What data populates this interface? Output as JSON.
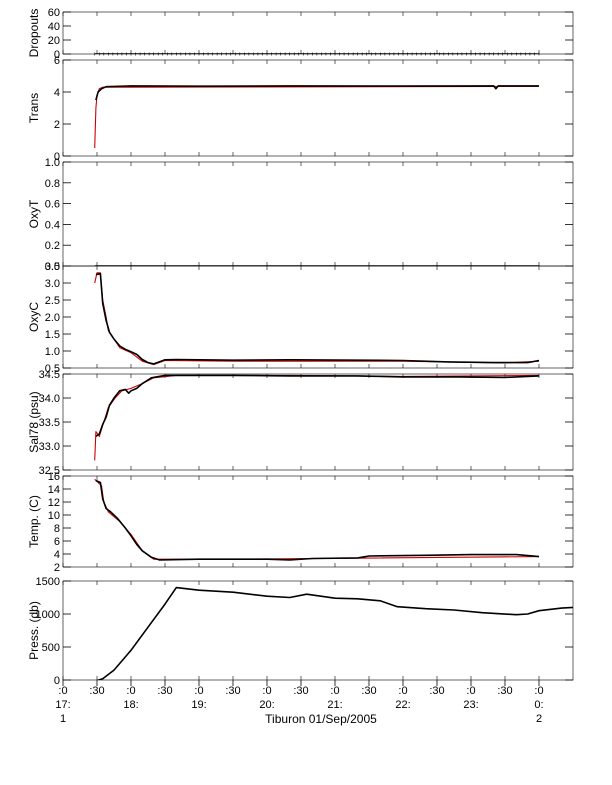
{
  "chart_data": {
    "type": "line",
    "title": "Tiburon 01/Sep/2005",
    "x_range": [
      "17:00",
      "00:30"
    ],
    "x_ticks": [
      {
        "top": ":0",
        "hour": "17:",
        "day": "1",
        "t": 0
      },
      {
        "top": ":30",
        "hour": "",
        "day": "",
        "t": 30
      },
      {
        "top": ":0",
        "hour": "18:",
        "day": "",
        "t": 60
      },
      {
        "top": ":30",
        "hour": "",
        "day": "",
        "t": 90
      },
      {
        "top": ":0",
        "hour": "19:",
        "day": "",
        "t": 120
      },
      {
        "top": ":30",
        "hour": "",
        "day": "",
        "t": 150
      },
      {
        "top": ":0",
        "hour": "20:",
        "day": "",
        "t": 180
      },
      {
        "top": ":30",
        "hour": "",
        "day": "",
        "t": 210
      },
      {
        "top": ":0",
        "hour": "21:",
        "day": "",
        "t": 240
      },
      {
        "top": ":30",
        "hour": "",
        "day": "",
        "t": 270
      },
      {
        "top": ":0",
        "hour": "22:",
        "day": "",
        "t": 300
      },
      {
        "top": ":30",
        "hour": "",
        "day": "",
        "t": 330
      },
      {
        "top": ":0",
        "hour": "23:",
        "day": "",
        "t": 360
      },
      {
        "top": ":30",
        "hour": "",
        "day": "",
        "t": 390
      },
      {
        "top": ":0",
        "hour": "0:",
        "day": "2",
        "t": 420
      }
    ],
    "x_max": 450,
    "panels": [
      {
        "ylabel": "Dropouts",
        "ylim": [
          0,
          60
        ],
        "yticks": [
          0,
          20,
          40,
          60
        ],
        "ytick_labels": [
          "0",
          "20",
          "40",
          "60"
        ],
        "series": [
          {
            "color": "#000000",
            "points": [
              [
                28,
                0
              ],
              [
                420,
                0
              ]
            ]
          }
        ]
      },
      {
        "ylabel": "Trans",
        "ylim": [
          0,
          6
        ],
        "yticks": [
          0,
          2,
          4,
          6
        ],
        "ytick_labels": [
          "0",
          "2",
          "4",
          "6"
        ],
        "series": [
          {
            "color": "#cc0000",
            "points": [
              [
                28,
                0.5
              ],
              [
                29,
                3.0
              ],
              [
                30,
                3.8
              ],
              [
                32,
                4.2
              ],
              [
                35,
                4.3
              ],
              [
                420,
                4.35
              ]
            ]
          },
          {
            "color": "#000000",
            "points": [
              [
                29,
                3.5
              ],
              [
                31,
                4.0
              ],
              [
                34,
                4.2
              ],
              [
                38,
                4.33
              ],
              [
                60,
                4.38
              ],
              [
                120,
                4.36
              ],
              [
                200,
                4.38
              ],
              [
                300,
                4.37
              ],
              [
                380,
                4.38
              ],
              [
                382,
                4.2
              ],
              [
                384,
                4.38
              ],
              [
                420,
                4.38
              ]
            ]
          }
        ]
      },
      {
        "ylabel": "OxyT",
        "ylim": [
          0,
          1
        ],
        "yticks": [
          0,
          0.2,
          0.4,
          0.6,
          0.8,
          1.0
        ],
        "ytick_labels": [
          "0.0",
          "0.2",
          "0.4",
          "0.6",
          "0.8",
          "1.0"
        ],
        "series": [
          {
            "color": "#000000",
            "points": [
              [
                28,
                0
              ],
              [
                420,
                0
              ]
            ]
          }
        ]
      },
      {
        "ylabel": "OxyC",
        "ylim": [
          0.5,
          3.5
        ],
        "yticks": [
          0.5,
          1.0,
          1.5,
          2.0,
          2.5,
          3.0,
          3.5
        ],
        "ytick_labels": [
          "0.5",
          "1.0",
          "1.5",
          "2.0",
          "2.5",
          "3.0",
          "3.5"
        ],
        "series": [
          {
            "color": "#cc0000",
            "points": [
              [
                28,
                3.0
              ],
              [
                30,
                3.3
              ],
              [
                33,
                3.3
              ],
              [
                35,
                2.5
              ],
              [
                38,
                2.0
              ],
              [
                40,
                1.6
              ],
              [
                44,
                1.4
              ],
              [
                50,
                1.1
              ],
              [
                60,
                0.95
              ],
              [
                70,
                0.7
              ],
              [
                80,
                0.6
              ],
              [
                90,
                0.72
              ],
              [
                150,
                0.7
              ],
              [
                300,
                0.7
              ],
              [
                390,
                0.65
              ],
              [
                420,
                0.7
              ]
            ]
          },
          {
            "color": "#000000",
            "points": [
              [
                29,
                3.25
              ],
              [
                33,
                3.27
              ],
              [
                35,
                2.4
              ],
              [
                38,
                1.9
              ],
              [
                41,
                1.55
              ],
              [
                45,
                1.35
              ],
              [
                50,
                1.15
              ],
              [
                55,
                1.05
              ],
              [
                60,
                0.98
              ],
              [
                65,
                0.9
              ],
              [
                70,
                0.75
              ],
              [
                75,
                0.66
              ],
              [
                80,
                0.62
              ],
              [
                85,
                0.68
              ],
              [
                90,
                0.74
              ],
              [
                100,
                0.75
              ],
              [
                150,
                0.73
              ],
              [
                200,
                0.74
              ],
              [
                260,
                0.73
              ],
              [
                300,
                0.72
              ],
              [
                340,
                0.68
              ],
              [
                380,
                0.66
              ],
              [
                410,
                0.66
              ],
              [
                420,
                0.72
              ]
            ]
          }
        ]
      },
      {
        "ylabel": "Sal78 (psu)",
        "ylim": [
          32.5,
          34.5
        ],
        "yticks": [
          32.5,
          33.0,
          33.5,
          34.0,
          34.5
        ],
        "ytick_labels": [
          "32.5",
          "33.0",
          "33.5",
          "34.0",
          "34.5"
        ],
        "series": [
          {
            "color": "#cc0000",
            "points": [
              [
                28,
                32.7
              ],
              [
                29,
                33.3
              ],
              [
                32,
                33.2
              ],
              [
                36,
                33.5
              ],
              [
                40,
                33.8
              ],
              [
                46,
                34.0
              ],
              [
                52,
                34.15
              ],
              [
                60,
                34.2
              ],
              [
                70,
                34.3
              ],
              [
                80,
                34.42
              ],
              [
                100,
                34.47
              ],
              [
                200,
                34.47
              ],
              [
                300,
                34.45
              ],
              [
                420,
                34.47
              ]
            ]
          },
          {
            "color": "#000000",
            "points": [
              [
                29,
                33.2
              ],
              [
                32,
                33.25
              ],
              [
                35,
                33.45
              ],
              [
                38,
                33.6
              ],
              [
                41,
                33.85
              ],
              [
                45,
                34.0
              ],
              [
                50,
                34.15
              ],
              [
                55,
                34.18
              ],
              [
                58,
                34.1
              ],
              [
                60,
                34.15
              ],
              [
                65,
                34.2
              ],
              [
                70,
                34.3
              ],
              [
                78,
                34.42
              ],
              [
                90,
                34.47
              ],
              [
                150,
                34.47
              ],
              [
                200,
                34.46
              ],
              [
                260,
                34.46
              ],
              [
                300,
                34.44
              ],
              [
                350,
                34.44
              ],
              [
                390,
                34.43
              ],
              [
                420,
                34.46
              ]
            ]
          }
        ]
      },
      {
        "ylabel": "Temp. (C)",
        "ylim": [
          2,
          16
        ],
        "yticks": [
          2,
          4,
          6,
          8,
          10,
          12,
          14,
          16
        ],
        "ytick_labels": [
          "2",
          "4",
          "6",
          "8",
          "10",
          "12",
          "14",
          "16"
        ],
        "series": [
          {
            "color": "#cc0000",
            "points": [
              [
                28,
                15.5
              ],
              [
                31,
                15.0
              ],
              [
                34,
                14.5
              ],
              [
                36,
                12.0
              ],
              [
                40,
                10.5
              ],
              [
                50,
                9.0
              ],
              [
                60,
                7.0
              ],
              [
                70,
                4.5
              ],
              [
                80,
                3.2
              ],
              [
                150,
                3.2
              ],
              [
                420,
                3.6
              ]
            ]
          },
          {
            "color": "#000000",
            "points": [
              [
                29,
                15.3
              ],
              [
                33,
                15.0
              ],
              [
                35,
                12.5
              ],
              [
                38,
                11.0
              ],
              [
                42,
                10.5
              ],
              [
                48,
                9.5
              ],
              [
                55,
                8.0
              ],
              [
                60,
                6.8
              ],
              [
                65,
                5.5
              ],
              [
                70,
                4.5
              ],
              [
                78,
                3.5
              ],
              [
                85,
                3.1
              ],
              [
                120,
                3.2
              ],
              [
                180,
                3.2
              ],
              [
                200,
                3.1
              ],
              [
                220,
                3.3
              ],
              [
                260,
                3.4
              ],
              [
                270,
                3.7
              ],
              [
                320,
                3.8
              ],
              [
                360,
                3.9
              ],
              [
                400,
                3.9
              ],
              [
                420,
                3.6
              ]
            ]
          }
        ]
      },
      {
        "ylabel": "Press. (db)",
        "ylim": [
          0,
          1500
        ],
        "yticks": [
          0,
          500,
          1000,
          1500
        ],
        "ytick_labels": [
          "0",
          "500",
          "1000",
          "1500"
        ],
        "series": [
          {
            "color": "#000000",
            "points": [
              [
                28,
                -20
              ],
              [
                35,
                20
              ],
              [
                45,
                150
              ],
              [
                60,
                450
              ],
              [
                75,
                800
              ],
              [
                90,
                1150
              ],
              [
                100,
                1400
              ],
              [
                120,
                1360
              ],
              [
                150,
                1330
              ],
              [
                180,
                1270
              ],
              [
                200,
                1250
              ],
              [
                215,
                1300
              ],
              [
                240,
                1240
              ],
              [
                260,
                1230
              ],
              [
                280,
                1200
              ],
              [
                295,
                1110
              ],
              [
                320,
                1080
              ],
              [
                345,
                1060
              ],
              [
                370,
                1020
              ],
              [
                400,
                990
              ],
              [
                410,
                1000
              ],
              [
                420,
                1050
              ],
              [
                440,
                1090
              ],
              [
                460,
                1110
              ],
              [
                450,
                1120
              ]
            ]
          }
        ]
      }
    ]
  }
}
